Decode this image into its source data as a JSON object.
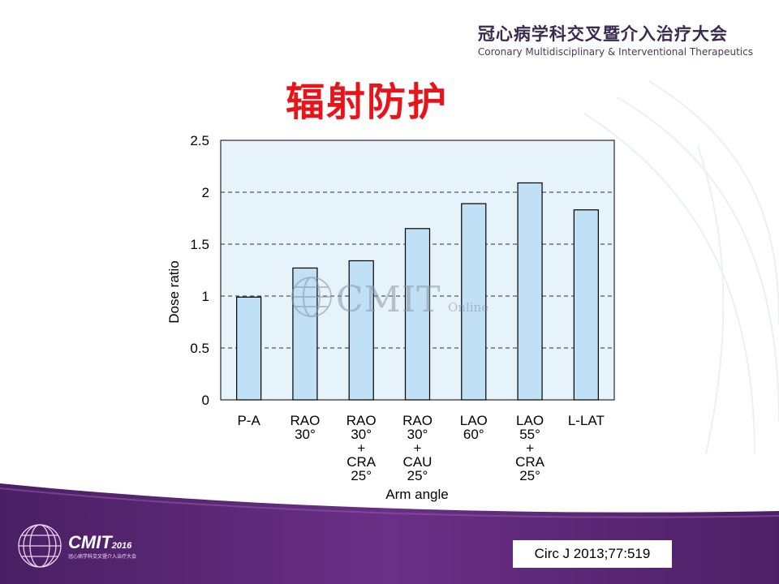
{
  "header": {
    "org_cn": "冠心病学科交叉暨介入治疗大会",
    "org_en": "Coronary Multidisciplinary & Interventional Therapeutics"
  },
  "slide_title": "辐射防护",
  "watermark": {
    "text": "CMIT",
    "sub": "Online"
  },
  "chart_data": {
    "type": "bar",
    "categories": [
      [
        "P-A"
      ],
      [
        "RAO",
        "30°"
      ],
      [
        "RAO",
        "30°",
        "+",
        "CRA",
        "25°"
      ],
      [
        "RAO",
        "30°",
        "+",
        "CAU",
        "25°"
      ],
      [
        "LAO",
        "60°"
      ],
      [
        "LAO",
        "55°",
        "+",
        "CRA",
        "25°"
      ],
      [
        "L-LAT"
      ]
    ],
    "values": [
      0.99,
      1.27,
      1.34,
      1.65,
      1.89,
      2.09,
      1.83
    ],
    "yticks": [
      "0",
      "0.5",
      "1",
      "1.5",
      "2",
      "2.5"
    ],
    "ylim": [
      0,
      2.5
    ],
    "xlabel": "Arm angle",
    "ylabel": "Dose ratio",
    "grid": "dashed-horizontal",
    "colors": {
      "bar_fill": "#bfe0f5",
      "plot_bg": "#e6f3fb",
      "bar_stroke": "#000000"
    }
  },
  "footer": {
    "logo_text": "CMIT",
    "logo_year": "2016",
    "logo_sub": "冠心病学科交叉暨介入治疗大会",
    "citation": "Circ J 2013;77:519",
    "band_color": "#5b2a73"
  }
}
